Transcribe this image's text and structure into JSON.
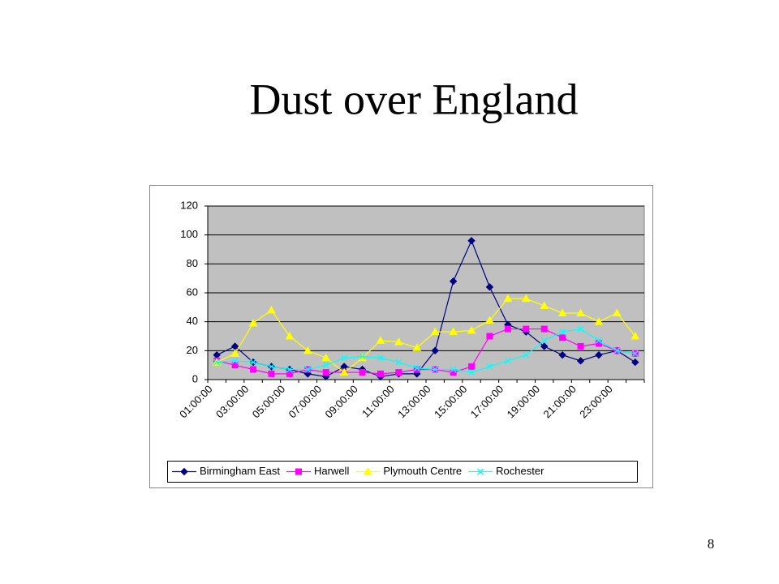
{
  "slide": {
    "title": "Dust over England",
    "page_number": "8"
  },
  "chart_data": {
    "type": "line",
    "categories": [
      "01:00:00",
      null,
      "03:00:00",
      null,
      "05:00:00",
      null,
      "07:00:00",
      null,
      "09:00:00",
      null,
      "11:00:00",
      null,
      "13:00:00",
      null,
      "15:00:00",
      null,
      "17:00:00",
      null,
      "19:00:00",
      null,
      "21:00:00",
      null,
      "23:00:00",
      null
    ],
    "series": [
      {
        "name": "Birmingham East",
        "color": "#000080",
        "marker": "diamond",
        "values": [
          17,
          23,
          12,
          9,
          7,
          4,
          2,
          9,
          7,
          2,
          4,
          4,
          20,
          68,
          96,
          64,
          38,
          33,
          23,
          17,
          13,
          17,
          20,
          12
        ]
      },
      {
        "name": "Harwell",
        "color": "#ff00ff",
        "marker": "square",
        "values": [
          13,
          10,
          7,
          4,
          4,
          7,
          5,
          5,
          5,
          4,
          5,
          7,
          7,
          5,
          9,
          30,
          35,
          35,
          35,
          29,
          23,
          25,
          20,
          18
        ]
      },
      {
        "name": "Plymouth Centre",
        "color": "#ffff00",
        "marker": "triangle",
        "values": [
          12,
          18,
          39,
          48,
          30,
          20,
          15,
          5,
          15,
          27,
          26,
          22,
          33,
          33,
          34,
          41,
          56,
          56,
          51,
          46,
          46,
          40,
          46,
          30
        ]
      },
      {
        "name": "Rochester",
        "color": "#00ffff",
        "marker": "x",
        "values": [
          12,
          13,
          12,
          9,
          7,
          7,
          10,
          15,
          16,
          15,
          12,
          8,
          7,
          7,
          5,
          9,
          13,
          17,
          27,
          33,
          35,
          27,
          20,
          18
        ]
      }
    ],
    "ylim": [
      0,
      120
    ],
    "yticks": [
      0,
      20,
      40,
      60,
      80,
      100,
      120
    ],
    "grid": true,
    "plot_background": "#c0c0c0",
    "legend": "bottom"
  }
}
